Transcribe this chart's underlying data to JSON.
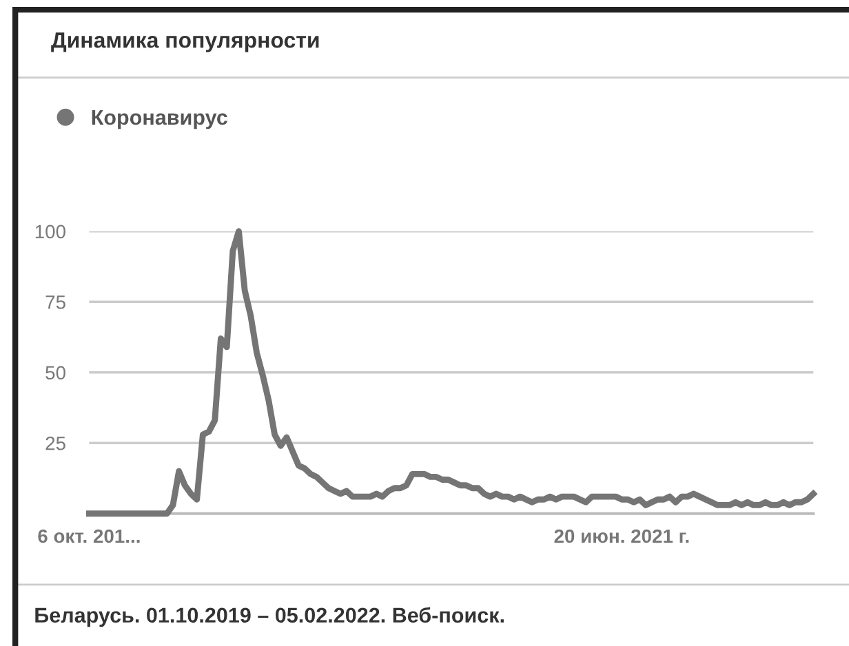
{
  "chart_data": {
    "type": "line",
    "title": "Динамика популярности",
    "categories": [
      "6 окт. 201...",
      null,
      null,
      null,
      null,
      null,
      null,
      null,
      null,
      null,
      null,
      null,
      null,
      null,
      null,
      null,
      null,
      null,
      null,
      null,
      null,
      null,
      null,
      null,
      null,
      null,
      null,
      null,
      null,
      null,
      null,
      null,
      null,
      null,
      null,
      null,
      null,
      null,
      null,
      null,
      null,
      null,
      null,
      null,
      null,
      null,
      null,
      null,
      null,
      null,
      null,
      null,
      null,
      null,
      null,
      null,
      null,
      null,
      null,
      null,
      null,
      null,
      null,
      null,
      null,
      null,
      null,
      null,
      null,
      null,
      null,
      null,
      null,
      null,
      null,
      null,
      null,
      null,
      null,
      null,
      null,
      null,
      null,
      null,
      null,
      null,
      null,
      null,
      null,
      "20 июн. 2021 г.",
      null,
      null,
      null,
      null,
      null,
      null,
      null,
      null,
      null,
      null,
      null,
      null,
      null,
      null,
      null,
      null,
      null,
      null,
      null,
      null,
      null,
      null,
      null,
      null,
      null,
      null,
      null,
      null,
      null,
      null,
      null,
      null
    ],
    "series": [
      {
        "name": "Коронавирус",
        "color": "#757575",
        "values": [
          0,
          0,
          0,
          0,
          0,
          0,
          0,
          0,
          0,
          0,
          0,
          0,
          0,
          0,
          3,
          15,
          10,
          7,
          5,
          28,
          29,
          33,
          62,
          59,
          93,
          100,
          79,
          70,
          57,
          49,
          40,
          28,
          24,
          27,
          22,
          17,
          16,
          14,
          13,
          11,
          9,
          8,
          7,
          8,
          6,
          6,
          6,
          6,
          7,
          6,
          8,
          9,
          9,
          10,
          14,
          14,
          14,
          13,
          13,
          12,
          12,
          11,
          10,
          10,
          9,
          9,
          7,
          6,
          7,
          6,
          6,
          5,
          6,
          5,
          4,
          5,
          5,
          6,
          5,
          6,
          6,
          6,
          5,
          4,
          6,
          6,
          6,
          6,
          6,
          5,
          5,
          4,
          5,
          3,
          4,
          5,
          5,
          6,
          4,
          6,
          6,
          7,
          6,
          5,
          4,
          3,
          3,
          3,
          4,
          3,
          4,
          3,
          3,
          4,
          3,
          3,
          4,
          3,
          4,
          4,
          5,
          7
        ]
      }
    ],
    "ylim": [
      0,
      100
    ],
    "yticks": [
      {
        "value": 0,
        "label": null
      },
      25,
      50,
      75,
      100
    ],
    "grid": "y",
    "legend": "top left",
    "marker": "none",
    "line_style": "solid",
    "annotations": [
      "Беларусь. 01.10.2019 – 05.02.2022. Веб-поиск."
    ]
  }
}
